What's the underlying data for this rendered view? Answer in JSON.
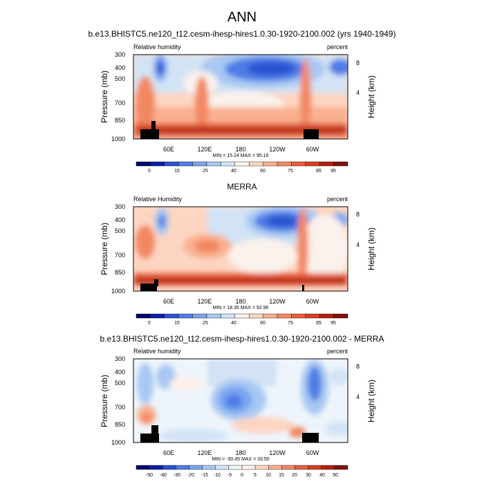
{
  "page": {
    "title": "ANN"
  },
  "colors": {
    "positive_scale": [
      "#05066e",
      "#0b1fa5",
      "#2b52d1",
      "#4d7de6",
      "#7aa6ef",
      "#a8c8f3",
      "#d2e3f5",
      "#faf2ec",
      "#fdd5c2",
      "#f9b08f",
      "#f28864",
      "#e66140",
      "#d63d1f",
      "#b4200c",
      "#80130b"
    ],
    "diff_scale": [
      "#05066e",
      "#0b1fa5",
      "#2b52d1",
      "#4d7de6",
      "#7aa6ef",
      "#a8c8f3",
      "#d2e3f5",
      "#eef4fb",
      "#fdf1ea",
      "#fdd5c2",
      "#f9b08f",
      "#f28864",
      "#e66140",
      "#d63d1f",
      "#b4200c",
      "#80130b"
    ],
    "land_mask": "#000000"
  },
  "chart_data": [
    {
      "type": "heatmap",
      "title": "b.e13.BHISTC5.ne120_t12.cesm-ihesp-hires1.0.30-1920-2100.002 (yrs 1940-1949)",
      "variable_label": "Relative humidity",
      "units_label": "percent",
      "ylabel": "Pressure (mb)",
      "ylabel_right": "Height (km)",
      "x_ticks": [
        "60E",
        "120E",
        "180",
        "120W",
        "60W"
      ],
      "y_ticks": [
        "300",
        "400",
        "500",
        "700",
        "850",
        "1000"
      ],
      "y_right_ticks": [
        "8",
        "4"
      ],
      "stats": "MIN = 15.24  MAX = 95.16",
      "colorbar_labels": [
        "5",
        "15",
        "25",
        "40",
        "60",
        "75",
        "85",
        "95"
      ],
      "min": 15.24,
      "max": 95.16
    },
    {
      "type": "heatmap",
      "title": "MERRA",
      "variable_label": "Relative Humidity",
      "units_label": "percent",
      "ylabel": "Pressure (mb)",
      "ylabel_right": "Height (km)",
      "x_ticks": [
        "60E",
        "120E",
        "180",
        "120W",
        "60W"
      ],
      "y_ticks": [
        "300",
        "400",
        "500",
        "700",
        "850",
        "1000"
      ],
      "y_right_ticks": [
        "8",
        "4"
      ],
      "stats": "MIN = 18.35  MAX = 92.96",
      "colorbar_labels": [
        "5",
        "15",
        "25",
        "40",
        "60",
        "75",
        "85",
        "95"
      ],
      "min": 18.35,
      "max": 92.96
    },
    {
      "type": "heatmap",
      "title": "b.e13.BHISTC5.ne120_t12.cesm-ihesp-hires1.0.30-1920-2100.002 - MERRA",
      "variable_label": "Relative humidity",
      "units_label": "percent",
      "ylabel": "Pressure (mb)",
      "ylabel_right": "Height (km)",
      "x_ticks": [
        "60E",
        "120E",
        "180",
        "120W",
        "60W"
      ],
      "y_ticks": [
        "300",
        "400",
        "500",
        "700",
        "850",
        "1000"
      ],
      "y_right_ticks": [
        "8",
        "4"
      ],
      "stats": "MIN = -30.45  MAX = 33.50",
      "colorbar_labels": [
        "-50",
        "-40",
        "-30",
        "-20",
        "-15",
        "-10",
        "-5",
        "0",
        "5",
        "10",
        "15",
        "20",
        "30",
        "40",
        "50"
      ],
      "min": -30.45,
      "max": 33.5
    }
  ]
}
